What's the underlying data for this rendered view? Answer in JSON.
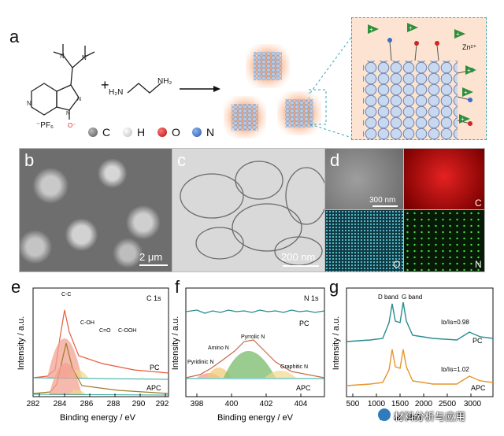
{
  "panels": {
    "a": "a",
    "b": "b",
    "c": "c",
    "d": "d",
    "e": "e",
    "f": "f",
    "g": "g"
  },
  "scheme": {
    "plus": "+",
    "amine_left": "H₂N",
    "amine_right": "NH₂",
    "counter_ion": "⁻PF₆",
    "oxide": "O⁻",
    "zn": "Zn²⁺",
    "legend": [
      {
        "symbol": "C",
        "color": "#7a7a7a"
      },
      {
        "symbol": "H",
        "color": "#e8e8e8"
      },
      {
        "symbol": "O",
        "color": "#d0261f"
      },
      {
        "symbol": "N",
        "color": "#3a6fc4"
      }
    ]
  },
  "micrographs": {
    "b_scale": "2 μm",
    "c_scale": "200 nm",
    "d_scale": "300 nm",
    "d_channels": [
      "C",
      "O",
      "N"
    ]
  },
  "plots": {
    "e": {
      "title": "C 1s",
      "ylabel": "Intensity / a.u.",
      "xlabel": "Binding energy / eV",
      "xticks": [
        "282",
        "284",
        "286",
        "288",
        "290",
        "292"
      ],
      "peaks": [
        "C-C",
        "C-OH",
        "C=O",
        "C-OOH"
      ],
      "traces": [
        "PC",
        "APC"
      ]
    },
    "f": {
      "title": "N 1s",
      "ylabel": "Intensity / a.u.",
      "xlabel": "Binding energy / eV",
      "xticks": [
        "398",
        "400",
        "402",
        "404"
      ],
      "peaks": [
        "Amino N",
        "Pyrrolic N",
        "Pyridinic N",
        "Graphitic N"
      ],
      "traces": [
        "PC",
        "APC"
      ]
    },
    "g": {
      "ylabel": "Intensity / a.u.",
      "xlabel_partial": "R",
      "xlabel_tail": "an shift",
      "xticks": [
        "500",
        "1000",
        "1500",
        "2000",
        "2500",
        "3000"
      ],
      "bands": [
        "D band",
        "G band"
      ],
      "ratio_pc": "Iᴅ/Iɢ=0.98",
      "ratio_pc_value": 0.98,
      "ratio_apc": "Iᴅ/Iɢ=1.02",
      "ratio_apc_value": 1.02,
      "traces": [
        "PC",
        "APC"
      ]
    }
  },
  "watermark": "材料分析与应用"
}
